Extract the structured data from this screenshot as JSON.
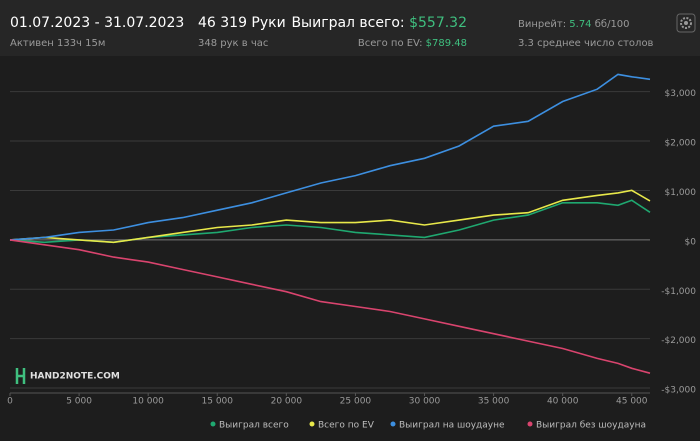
{
  "header": {
    "period": "01.07.2023 - 31.07.2023",
    "active": "Активен 133ч 15м",
    "hands": "46 319 Руки",
    "hands_per_hour": "348 рук в час",
    "won_label": "Выиграл всего:",
    "won_value": "$557.32",
    "ev_label": "Всего по EV:",
    "ev_value": "$789.48",
    "winrate_label": "Винрейт:",
    "winrate_value": "5.74",
    "winrate_unit": "бб/100",
    "tables": "3.3 среднее число столов",
    "logo": "HAND2NOTE.COM"
  },
  "chart_data": {
    "type": "line",
    "x": [
      0,
      2500,
      5000,
      7500,
      10000,
      12500,
      15000,
      17500,
      20000,
      22500,
      25000,
      27500,
      30000,
      32500,
      35000,
      37500,
      40000,
      42500,
      44000,
      45000,
      46319
    ],
    "series": [
      {
        "name": "Выиграл всего",
        "color": "#1fa870",
        "values": [
          0,
          -50,
          0,
          -50,
          50,
          100,
          150,
          250,
          300,
          250,
          150,
          100,
          50,
          200,
          400,
          500,
          750,
          750,
          700,
          800,
          557
        ]
      },
      {
        "name": "Всего по EV",
        "color": "#e8e84a",
        "values": [
          0,
          50,
          0,
          -50,
          50,
          150,
          250,
          300,
          400,
          350,
          350,
          400,
          300,
          400,
          500,
          550,
          800,
          900,
          950,
          1000,
          789
        ]
      },
      {
        "name": "Выиграл на шоудауне",
        "color": "#3d8fe0",
        "values": [
          0,
          50,
          150,
          200,
          350,
          450,
          600,
          750,
          950,
          1150,
          1300,
          1500,
          1650,
          1900,
          2300,
          2400,
          2800,
          3050,
          3350,
          3300,
          3250
        ]
      },
      {
        "name": "Выиграл без шоудауна",
        "color": "#d9446e",
        "values": [
          0,
          -100,
          -200,
          -350,
          -450,
          -600,
          -750,
          -900,
          -1050,
          -1250,
          -1350,
          -1450,
          -1600,
          -1750,
          -1900,
          -2050,
          -2200,
          -2400,
          -2500,
          -2600,
          -2700
        ]
      }
    ],
    "xlim": [
      0,
      46319
    ],
    "xticks": [
      0,
      {
        "value": 5000,
        "label": "5 000"
      },
      {
        "value": 10000,
        "label": "10 000"
      },
      {
        "value": 15000,
        "label": "15 000"
      },
      {
        "value": 20000,
        "label": "20 000"
      },
      {
        "value": 25000,
        "label": "25 000"
      },
      {
        "value": 30000,
        "label": "30 000"
      },
      {
        "value": 35000,
        "label": "35 000"
      },
      {
        "value": 40000,
        "label": "40 000"
      },
      {
        "value": 45000,
        "label": "45 000"
      }
    ],
    "ylim": [
      -3100,
      3600
    ],
    "yticks": [
      {
        "value": -3000,
        "label": "-$3,000"
      },
      {
        "value": -2000,
        "label": "-$2,000"
      },
      {
        "value": -1000,
        "label": "-$1,000"
      },
      {
        "value": 0,
        "label": "$0"
      },
      {
        "value": 1000,
        "label": "$1,000"
      },
      {
        "value": 2000,
        "label": "$2,000"
      },
      {
        "value": 3000,
        "label": "$3,000"
      }
    ],
    "grid": true
  }
}
